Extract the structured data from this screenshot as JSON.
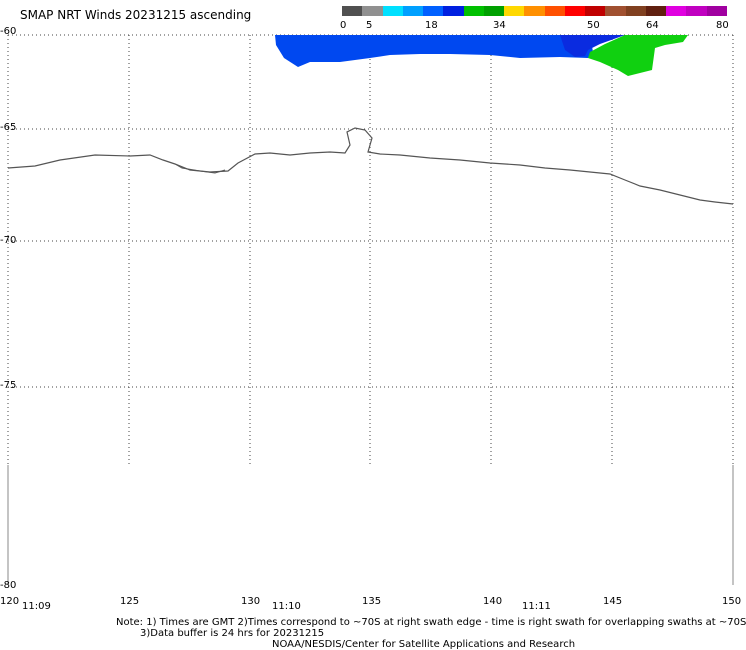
{
  "title": "SMAP NRT Winds 20231215 ascending",
  "colorbar": {
    "labels": [
      "0",
      "5",
      "18",
      "34",
      "50",
      "64",
      "80"
    ],
    "segments": [
      "#505050",
      "#909090",
      "#00e0ff",
      "#00a0ff",
      "#0060ff",
      "#0020e0",
      "#00c000",
      "#00a000",
      "#ffd800",
      "#ff9000",
      "#ff5000",
      "#ff0000",
      "#c00000",
      "#a05030",
      "#804020",
      "#602010",
      "#e000e0",
      "#c000c0",
      "#a000a0"
    ]
  },
  "axes": {
    "lat_labels": [
      "-60",
      "-65",
      "-70",
      "-75",
      "-80"
    ],
    "lon_labels": [
      "120",
      "125",
      "130",
      "135",
      "140",
      "145",
      "150"
    ],
    "time_labels": [
      "11:09",
      "11:10",
      "11:11"
    ]
  },
  "colors": {
    "low_wind": "#0048f0",
    "moderate_wind": "#10d010",
    "coastline": "#555555",
    "grid": "#444444"
  },
  "notes": {
    "line1": "Note: 1) Times are GMT 2)Times correspond to ~70S at right swath edge - time is right swath for overlapping swaths at ~70S",
    "line2": "3)Data buffer is 24 hrs for 20231215",
    "line3": "NOAA/NESDIS/Center for Satellite Applications and Research"
  }
}
